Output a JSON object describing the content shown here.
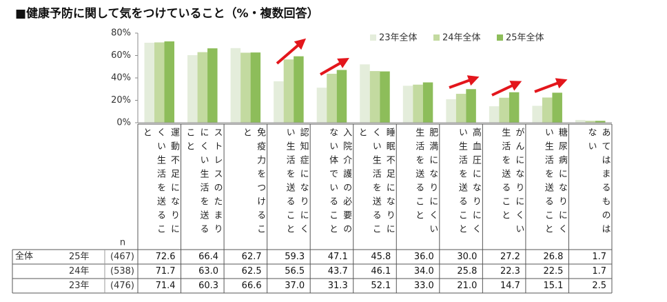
{
  "chart_data": {
    "type": "bar",
    "title": "■健康予防に関して気をつけていること（%・複数回答）",
    "categories": [
      "運動不足になりにくい生活を送ること",
      "ストレスのたまりにくい生活を送ること",
      "免疫力をつけること",
      "認知症になりにくい生活を送ること",
      "入院介護の必要のない体でいること",
      "睡眠不足になりにくい生活を送ること",
      "肥満になりにくい生活を送ること",
      "高血圧になりにくい生活を送ること",
      "がんになりにくい生活を送ること",
      "糖尿病になりにくい生活を送ること",
      "あてはまるものはない"
    ],
    "series": [
      {
        "name": "23年全体",
        "color": "#e4eddb",
        "values": [
          71.4,
          60.3,
          66.6,
          37.0,
          31.3,
          52.1,
          33.0,
          21.0,
          14.7,
          15.1,
          2.5
        ],
        "value_labels": [
          "71.4",
          "60.3",
          "66.6",
          "37.0",
          "31.3",
          "52.1",
          "33.0",
          "21.0",
          "14.7",
          "15.1",
          "2.5"
        ]
      },
      {
        "name": "24年全体",
        "color": "#c3daa0",
        "values": [
          71.7,
          63.0,
          62.5,
          56.5,
          43.7,
          46.1,
          34.0,
          25.8,
          22.3,
          22.5,
          1.7
        ],
        "value_labels": [
          "71.7",
          "63.0",
          "62.5",
          "56.5",
          "43.7",
          "46.1",
          "34.0",
          "25.8",
          "22.3",
          "22.5",
          "1.7"
        ]
      },
      {
        "name": "25年全体",
        "color": "#8dbd5a",
        "values": [
          72.6,
          66.4,
          62.7,
          59.3,
          47.1,
          45.8,
          36.0,
          30.0,
          27.2,
          26.8,
          1.7
        ],
        "value_labels": [
          "72.6",
          "66.4",
          "62.7",
          "59.3",
          "47.1",
          "45.8",
          "36.0",
          "30.0",
          "27.2",
          "26.8",
          "1.7"
        ]
      }
    ],
    "ylim": [
      0,
      80
    ],
    "yticks": [
      {
        "value": 0,
        "label": "0%"
      },
      {
        "value": 20,
        "label": "20%"
      },
      {
        "value": 40,
        "label": "40%"
      },
      {
        "value": 60,
        "label": "60%"
      },
      {
        "value": 80,
        "label": "80%"
      }
    ],
    "legend": "top-right"
  },
  "table": {
    "n_header": "n",
    "group": "全体",
    "rows": [
      {
        "year": "25年",
        "n": "(467)"
      },
      {
        "year": "24年",
        "n": "(538)"
      },
      {
        "year": "23年",
        "n": "(476)"
      }
    ]
  }
}
